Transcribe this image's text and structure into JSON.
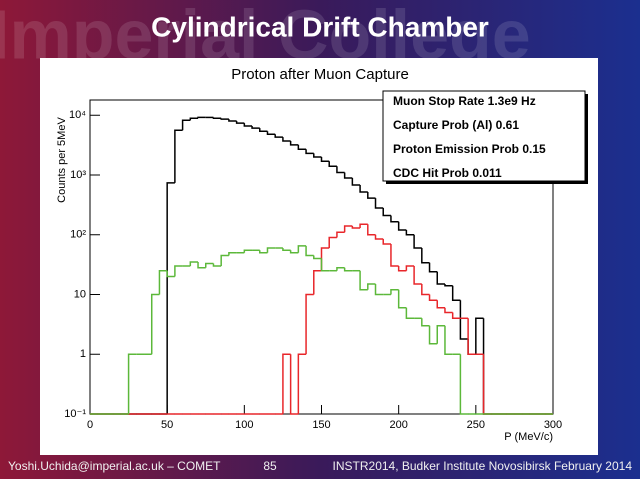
{
  "slide": {
    "title": "Cylindrical Drift Chamber",
    "watermark": "Imperial College",
    "footer": [
      "Yoshi.Uchida@imperial.ac.uk – COMET",
      "85",
      "INSTR2014, Budker Institute Novosibirsk February 2014"
    ]
  },
  "chart_data": {
    "type": "histogram",
    "title": "Proton after Muon Capture",
    "x_label": "P (MeV/c)",
    "y_label": "Counts per 5MeV",
    "annotations": [
      "Muon Stop Rate 1.3e9 Hz",
      "Capture Prob (Al) 0.61",
      "Proton Emission Prob 0.15",
      "CDC Hit Prob 0.011"
    ],
    "bins": [
      0,
      5,
      10,
      15,
      20,
      25,
      30,
      35,
      40,
      45,
      50,
      55,
      60,
      65,
      70,
      75,
      80,
      85,
      90,
      95,
      100,
      105,
      110,
      115,
      120,
      125,
      130,
      135,
      140,
      145,
      150,
      155,
      160,
      165,
      170,
      175,
      180,
      185,
      190,
      195,
      200,
      205,
      210,
      215,
      220,
      225,
      230,
      235,
      240,
      245,
      250,
      255,
      260,
      265,
      270,
      275,
      280,
      285,
      290,
      295,
      300
    ],
    "series": [
      {
        "color": "#000000",
        "values": [
          0,
          0,
          0,
          0,
          0,
          0,
          0,
          0,
          0,
          0,
          740,
          5600,
          8250,
          8900,
          9200,
          9200,
          8900,
          8600,
          8000,
          7400,
          6600,
          6100,
          5400,
          4800,
          4300,
          3700,
          3200,
          2700,
          2300,
          2000,
          1700,
          1400,
          1100,
          890,
          680,
          520,
          410,
          280,
          210,
          165,
          120,
          100,
          60,
          34,
          24,
          15,
          14,
          8,
          1.8,
          1,
          4,
          0,
          0,
          0,
          0,
          0,
          0,
          0,
          0,
          0
        ]
      },
      {
        "color": "#e8262a",
        "values": [
          0,
          0,
          0,
          0,
          0,
          0,
          0,
          0,
          0,
          0,
          0,
          0,
          0,
          0,
          0,
          0,
          0,
          0,
          0,
          0,
          0,
          0,
          0,
          0,
          0,
          1,
          0,
          1,
          10,
          25,
          60,
          90,
          110,
          140,
          130,
          150,
          100,
          85,
          70,
          30,
          25,
          30,
          15,
          10,
          8,
          6,
          5,
          4,
          4,
          1,
          1,
          0,
          0,
          0,
          0,
          0,
          0,
          0,
          0,
          0
        ]
      },
      {
        "color": "#5cb83a",
        "values": [
          0,
          0,
          0,
          0,
          0,
          1,
          1,
          1,
          10,
          25,
          20,
          30,
          30,
          35,
          28,
          33,
          30,
          45,
          50,
          50,
          55,
          55,
          50,
          60,
          60,
          55,
          50,
          65,
          45,
          40,
          25,
          25,
          28,
          25,
          25,
          12,
          15,
          10,
          10,
          12,
          6,
          4,
          4,
          3,
          1.5,
          3,
          1,
          1,
          0,
          0,
          0,
          0,
          0,
          0,
          0,
          0,
          0,
          0,
          0,
          0
        ]
      }
    ],
    "xlim": [
      0,
      300
    ],
    "xticks": [
      0,
      50,
      100,
      150,
      200,
      250,
      300
    ],
    "ylim": [
      0.1,
      18000
    ],
    "log_y": true,
    "yticks": [
      {
        "value": 0.1,
        "label": "10⁻¹"
      },
      1,
      10,
      {
        "value": 100,
        "label": "10²"
      },
      {
        "value": 1000,
        "label": "10³"
      },
      {
        "value": 10000,
        "label": "10⁴"
      }
    ]
  }
}
